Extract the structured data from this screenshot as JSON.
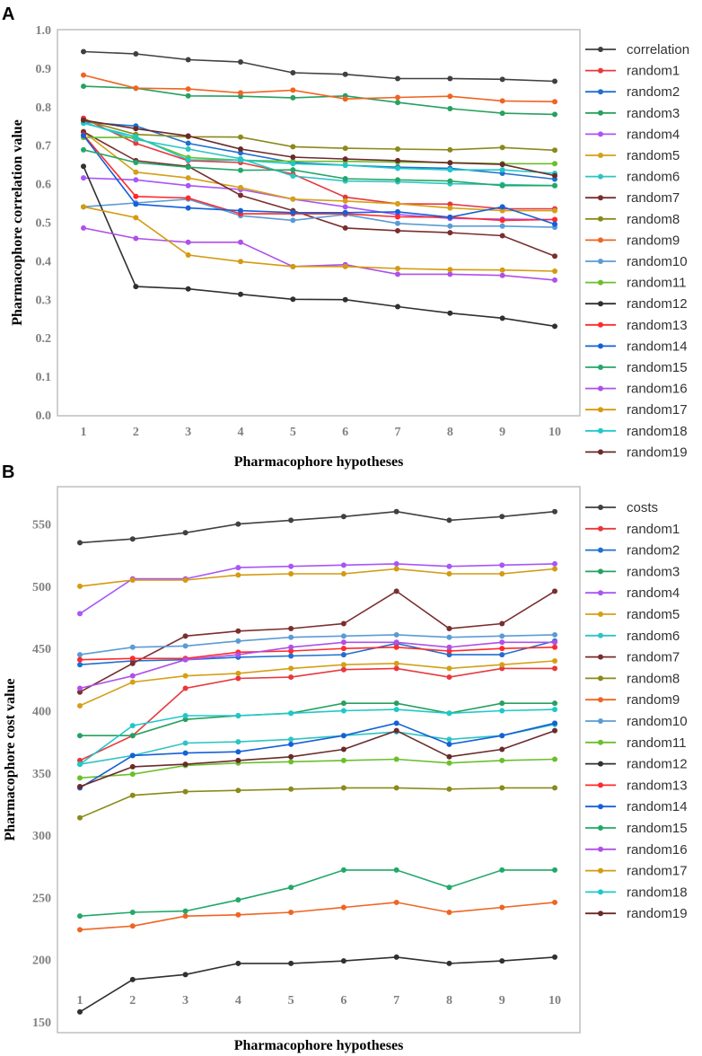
{
  "chart_data": [
    {
      "type": "line",
      "panel_label": "A",
      "xlabel": "Pharmacophore hypotheses",
      "ylabel": "Pharmacophore correlation value",
      "x": [
        1,
        2,
        3,
        4,
        5,
        6,
        7,
        8,
        9,
        10
      ],
      "x_ticks": [
        "1",
        "2",
        "3",
        "4",
        "5",
        "6",
        "7",
        "8",
        "9",
        "10"
      ],
      "ylim": [
        0,
        1.0
      ],
      "y_ticks": [
        "0.0",
        "0.1",
        "0.2",
        "0.3",
        "0.4",
        "0.5",
        "0.6",
        "0.7",
        "0.8",
        "0.9",
        "1.0"
      ],
      "legend_position": "right",
      "grid": false,
      "series": [
        {
          "name": "correlation",
          "color": "#404040",
          "values": [
            0.943,
            0.937,
            0.922,
            0.916,
            0.888,
            0.884,
            0.873,
            0.873,
            0.871,
            0.866
          ]
        },
        {
          "name": "random1",
          "color": "#e8383d",
          "values": [
            0.77,
            0.705,
            0.66,
            0.655,
            0.625,
            0.565,
            0.548,
            0.547,
            0.535,
            0.535
          ]
        },
        {
          "name": "random2",
          "color": "#1f6fd0",
          "values": [
            0.76,
            0.75,
            0.705,
            0.68,
            0.655,
            0.648,
            0.643,
            0.64,
            0.627,
            0.612
          ]
        },
        {
          "name": "random3",
          "color": "#27a060",
          "values": [
            0.853,
            0.848,
            0.828,
            0.827,
            0.823,
            0.828,
            0.811,
            0.795,
            0.783,
            0.78
          ]
        },
        {
          "name": "random4",
          "color": "#a855f7",
          "values": [
            0.615,
            0.61,
            0.595,
            0.585,
            0.56,
            0.54,
            0.52,
            0.51,
            0.508,
            0.507
          ]
        },
        {
          "name": "random5",
          "color": "#d4a017",
          "values": [
            0.735,
            0.63,
            0.615,
            0.59,
            0.56,
            0.555,
            0.548,
            0.537,
            0.53,
            0.53
          ]
        },
        {
          "name": "random6",
          "color": "#2ec4c4",
          "values": [
            0.76,
            0.715,
            0.69,
            0.665,
            0.62,
            0.607,
            0.605,
            0.6,
            0.598,
            0.595
          ]
        },
        {
          "name": "random7",
          "color": "#7a2e2e",
          "values": [
            0.735,
            0.66,
            0.645,
            0.57,
            0.53,
            0.485,
            0.478,
            0.473,
            0.465,
            0.412
          ]
        },
        {
          "name": "random8",
          "color": "#8a8a1a",
          "values": [
            0.765,
            0.728,
            0.722,
            0.721,
            0.696,
            0.692,
            0.69,
            0.688,
            0.694,
            0.687
          ]
        },
        {
          "name": "random9",
          "color": "#f06422",
          "values": [
            0.882,
            0.848,
            0.846,
            0.836,
            0.843,
            0.82,
            0.824,
            0.827,
            0.815,
            0.813
          ]
        },
        {
          "name": "random10",
          "color": "#5b9bd5",
          "values": [
            0.54,
            0.55,
            0.56,
            0.517,
            0.505,
            0.52,
            0.497,
            0.49,
            0.49,
            0.487
          ]
        },
        {
          "name": "random11",
          "color": "#6bbf2b",
          "values": [
            0.72,
            0.72,
            0.668,
            0.661,
            0.658,
            0.658,
            0.656,
            0.655,
            0.652,
            0.652
          ]
        },
        {
          "name": "random12",
          "color": "#303030",
          "values": [
            0.645,
            0.333,
            0.327,
            0.313,
            0.3,
            0.299,
            0.281,
            0.264,
            0.251,
            0.23
          ]
        },
        {
          "name": "random13",
          "color": "#ff2a2a",
          "values": [
            0.727,
            0.567,
            0.563,
            0.522,
            0.522,
            0.522,
            0.514,
            0.513,
            0.505,
            0.507
          ]
        },
        {
          "name": "random14",
          "color": "#1560d8",
          "values": [
            0.725,
            0.547,
            0.537,
            0.53,
            0.525,
            0.525,
            0.527,
            0.513,
            0.54,
            0.495
          ]
        },
        {
          "name": "random15",
          "color": "#22a86a",
          "values": [
            0.688,
            0.655,
            0.643,
            0.635,
            0.636,
            0.613,
            0.61,
            0.607,
            0.595,
            0.595
          ]
        },
        {
          "name": "random16",
          "color": "#b050e8",
          "values": [
            0.485,
            0.458,
            0.448,
            0.448,
            0.385,
            0.39,
            0.365,
            0.365,
            0.362,
            0.35
          ]
        },
        {
          "name": "random17",
          "color": "#d49a10",
          "values": [
            0.54,
            0.512,
            0.415,
            0.398,
            0.385,
            0.385,
            0.38,
            0.377,
            0.376,
            0.373
          ]
        },
        {
          "name": "random18",
          "color": "#1fc8c8",
          "values": [
            0.757,
            0.722,
            0.662,
            0.661,
            0.652,
            0.648,
            0.64,
            0.636,
            0.636,
            0.627
          ]
        },
        {
          "name": "random19",
          "color": "#6b2a2a",
          "values": [
            0.765,
            0.743,
            0.724,
            0.69,
            0.669,
            0.664,
            0.66,
            0.654,
            0.65,
            0.621
          ]
        }
      ]
    },
    {
      "type": "line",
      "panel_label": "B",
      "xlabel": "Pharmacophore hypotheses",
      "ylabel": "Pharmacophore cost value",
      "x": [
        1,
        2,
        3,
        4,
        5,
        6,
        7,
        8,
        9,
        10
      ],
      "x_ticks": [
        "1",
        "2",
        "3",
        "4",
        "5",
        "6",
        "7",
        "8",
        "9",
        "10"
      ],
      "ylim": [
        150,
        580
      ],
      "y_ticks": [
        "150",
        "200",
        "250",
        "300",
        "350",
        "400",
        "450",
        "500",
        "550"
      ],
      "legend_position": "right",
      "grid": false,
      "series": [
        {
          "name": "costs",
          "color": "#404040",
          "values": [
            535,
            538,
            543,
            550,
            553,
            556,
            560,
            553,
            556,
            560
          ]
        },
        {
          "name": "random1",
          "color": "#e8383d",
          "values": [
            360,
            380,
            418,
            426,
            427,
            433,
            434,
            427,
            434,
            434
          ]
        },
        {
          "name": "random2",
          "color": "#1f6fd0",
          "values": [
            437,
            440,
            441,
            443,
            444,
            445,
            454,
            445,
            445,
            456
          ]
        },
        {
          "name": "random3",
          "color": "#27a060",
          "values": [
            380,
            380,
            393,
            396,
            398,
            406,
            406,
            398,
            406,
            406
          ]
        },
        {
          "name": "random4",
          "color": "#a855f7",
          "values": [
            478,
            506,
            506,
            515,
            516,
            517,
            518,
            516,
            517,
            518
          ]
        },
        {
          "name": "random5",
          "color": "#d4a017",
          "values": [
            404,
            423,
            428,
            430,
            434,
            437,
            438,
            434,
            437,
            440
          ]
        },
        {
          "name": "random6",
          "color": "#2ec4c4",
          "values": [
            357,
            364,
            374,
            375,
            377,
            380,
            383,
            377,
            380,
            389
          ]
        },
        {
          "name": "random7",
          "color": "#7a2e2e",
          "values": [
            415,
            438,
            460,
            464,
            466,
            470,
            496,
            466,
            470,
            496
          ]
        },
        {
          "name": "random8",
          "color": "#8a8a1a",
          "values": [
            314,
            332,
            335,
            336,
            337,
            338,
            338,
            337,
            338,
            338
          ]
        },
        {
          "name": "random9",
          "color": "#f06422",
          "values": [
            224,
            227,
            235,
            236,
            238,
            242,
            246,
            238,
            242,
            246
          ]
        },
        {
          "name": "random10",
          "color": "#5b9bd5",
          "values": [
            445,
            451,
            452,
            456,
            459,
            460,
            461,
            459,
            460,
            461
          ]
        },
        {
          "name": "random11",
          "color": "#6bbf2b",
          "values": [
            346,
            349,
            356,
            358,
            359,
            360,
            361,
            358,
            360,
            361
          ]
        },
        {
          "name": "random12",
          "color": "#303030",
          "values": [
            158,
            184,
            188,
            197,
            197,
            199,
            202,
            197,
            199,
            202
          ]
        },
        {
          "name": "random13",
          "color": "#ff2a2a",
          "values": [
            441,
            442,
            442,
            447,
            448,
            450,
            451,
            448,
            450,
            451
          ]
        },
        {
          "name": "random14",
          "color": "#1560d8",
          "values": [
            338,
            364,
            366,
            367,
            373,
            380,
            390,
            373,
            380,
            390
          ]
        },
        {
          "name": "random15",
          "color": "#22a86a",
          "values": [
            235,
            238,
            239,
            248,
            258,
            272,
            272,
            258,
            272,
            272
          ]
        },
        {
          "name": "random16",
          "color": "#b050e8",
          "values": [
            418,
            428,
            441,
            445,
            451,
            455,
            455,
            451,
            455,
            455
          ]
        },
        {
          "name": "random17",
          "color": "#d49a10",
          "values": [
            500,
            505,
            505,
            509,
            510,
            510,
            514,
            510,
            510,
            514
          ]
        },
        {
          "name": "random18",
          "color": "#1fc8c8",
          "values": [
            357,
            388,
            396,
            396,
            398,
            400,
            401,
            398,
            400,
            401
          ]
        },
        {
          "name": "random19",
          "color": "#6b2a2a",
          "values": [
            339,
            355,
            357,
            360,
            363,
            369,
            384,
            363,
            369,
            384
          ]
        }
      ]
    }
  ]
}
